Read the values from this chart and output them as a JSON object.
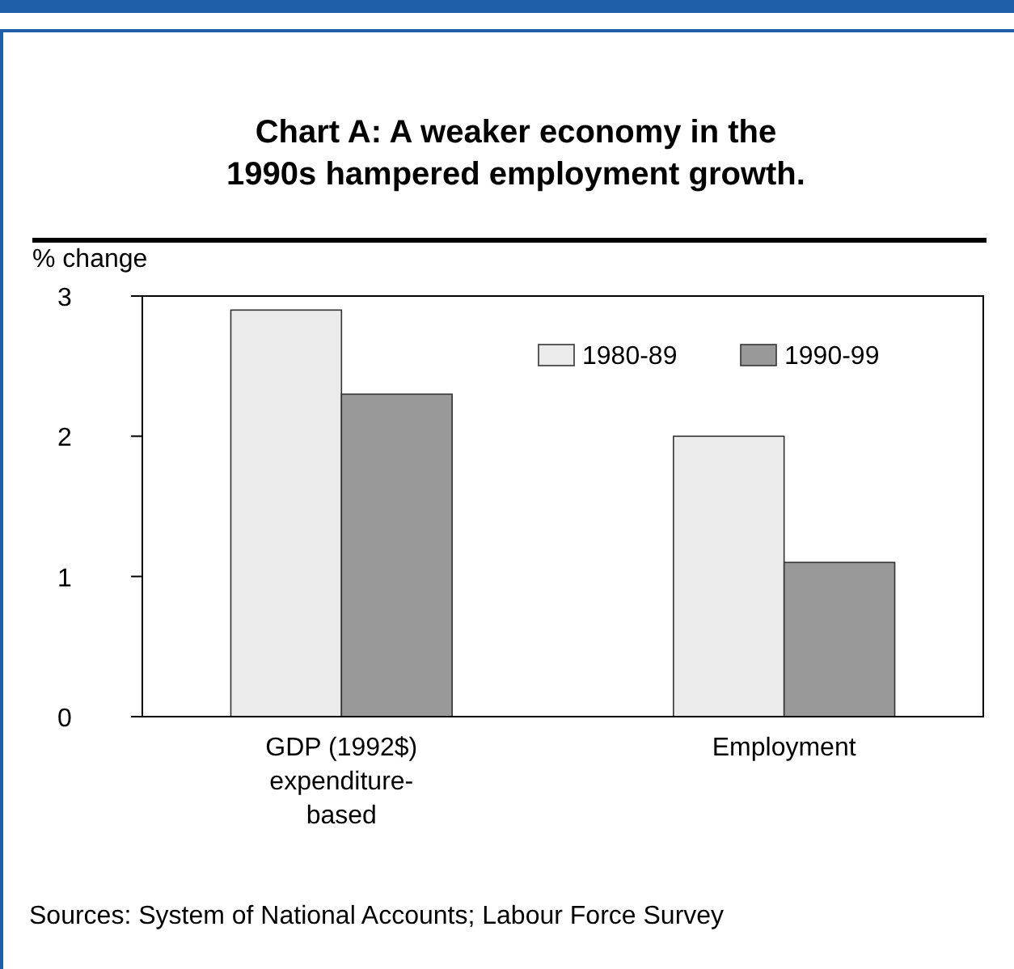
{
  "chart_data": {
    "type": "bar",
    "title": "Chart A: A weaker economy in the 1990s hampered employment growth.",
    "ylabel": "% change",
    "categories": [
      "GDP (1992$) expenditure-based",
      "Employment"
    ],
    "series": [
      {
        "name": "1980-89",
        "color": "#ebebeb",
        "values": [
          2.9,
          2.0
        ]
      },
      {
        "name": "1990-99",
        "color": "#999999",
        "values": [
          2.3,
          1.1
        ]
      }
    ],
    "ylim": [
      0,
      3
    ],
    "yticks": [
      0,
      1,
      2,
      3
    ],
    "legend": "top right",
    "annotations": [
      "Sources: System of National Accounts; Labour Force Survey"
    ]
  }
}
